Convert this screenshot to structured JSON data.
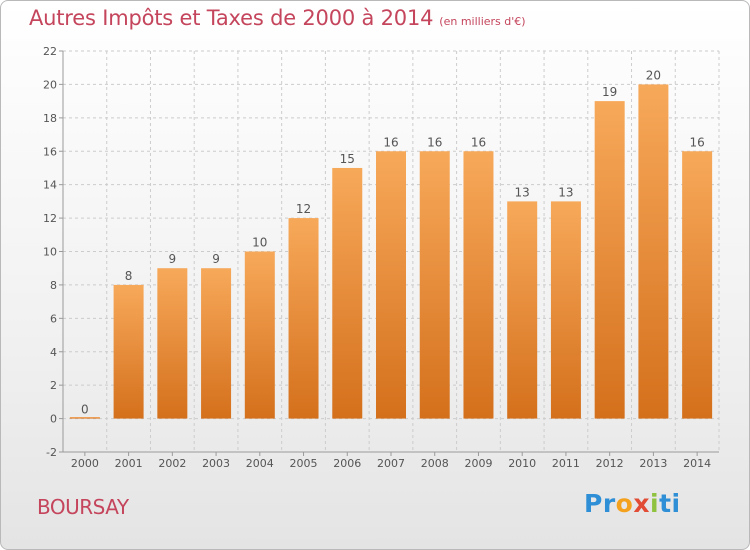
{
  "title": "Autres Impôts et Taxes de 2000 à 2014",
  "unit": "(en milliers d'€)",
  "town": "BOURSAY",
  "logo": {
    "p1": "Pr",
    "p2": "o",
    "p3": "x",
    "p4": "i",
    "p5": "ti"
  },
  "colors": {
    "title": "#c4455c",
    "bar_top": "#f7a95a",
    "bar_bottom": "#d4701c",
    "axis": "#9a9a9a",
    "grid": "#cccccc"
  },
  "chart_data": {
    "type": "bar",
    "title": "Autres Impôts et Taxes de 2000 à 2014",
    "subtitle": "(en milliers d'€)",
    "categories": [
      "2000",
      "2001",
      "2002",
      "2003",
      "2004",
      "2005",
      "2006",
      "2007",
      "2008",
      "2009",
      "2010",
      "2011",
      "2012",
      "2013",
      "2014"
    ],
    "values": [
      0,
      8,
      9,
      9,
      10,
      12,
      15,
      16,
      16,
      16,
      13,
      13,
      19,
      20,
      16
    ],
    "ylim": [
      -2,
      22
    ],
    "yticks": [
      -2,
      0,
      2,
      4,
      6,
      8,
      10,
      12,
      14,
      16,
      18,
      20,
      22
    ],
    "grid": true,
    "data_labels": true
  }
}
